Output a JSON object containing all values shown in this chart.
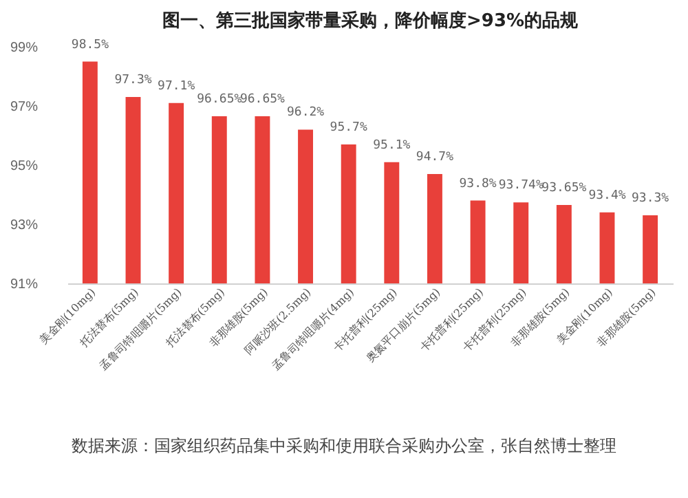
{
  "chart_data": {
    "type": "bar",
    "title": "图一、第三批国家带量采购，降价幅度>93%的品规",
    "categories": [
      "美金刚(10mg)",
      "托法替布(5mg)",
      "孟鲁司特咀嚼片(5mg)",
      "托法替布(5mg)",
      "非那雄胺(5mg)",
      "阿哌沙班(2.5mg)",
      "孟鲁司特咀嚼片(4mg)",
      "卡托普利(25mg)",
      "奥氮平口崩片(5mg)",
      "卡托普利(25mg)",
      "卡托普利(25mg)",
      "非那雄胺(5mg)",
      "美金刚(10mg)",
      "非那雄胺(5mg)"
    ],
    "values": [
      98.5,
      97.3,
      97.1,
      96.65,
      96.65,
      96.2,
      95.7,
      95.1,
      94.7,
      93.8,
      93.74,
      93.65,
      93.4,
      93.3
    ],
    "value_labels": [
      "98.5%",
      "97.3%",
      "97.1%",
      "96.65%",
      "96.65%",
      "96.2%",
      "95.7%",
      "95.1%",
      "94.7%",
      "93.8%",
      "93.74%",
      "93.65%",
      "93.4%",
      "93.3%"
    ],
    "color": "#e8403a",
    "ylim": [
      91,
      99
    ],
    "yticks": [
      {
        "value": 91,
        "label": "91%"
      },
      {
        "value": 93,
        "label": "93%"
      },
      {
        "value": 95,
        "label": "95%"
      },
      {
        "value": 97,
        "label": "97%"
      },
      {
        "value": 99,
        "label": "99%"
      }
    ],
    "annotations": [
      "数据来源：国家组织药品集中采购和使用联合采购办公室，张自然博士整理"
    ]
  }
}
